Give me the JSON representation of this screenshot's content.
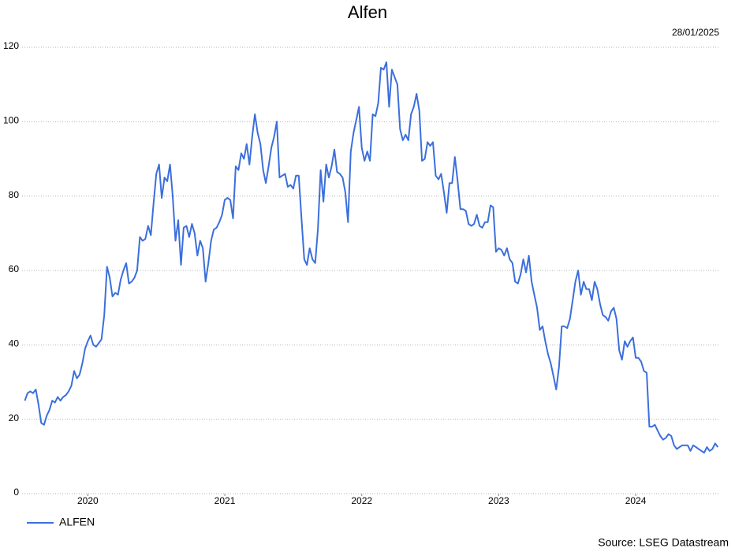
{
  "chart_data": {
    "type": "line",
    "title": "Alfen",
    "subtitle": "28/01/2025",
    "source": "Source: LSEG Datastream",
    "x": [
      2019.54,
      2019.56,
      2019.58,
      2019.6,
      2019.62,
      2019.64,
      2019.66,
      2019.68,
      2019.7,
      2019.72,
      2019.74,
      2019.76,
      2019.78,
      2019.8,
      2019.82,
      2019.84,
      2019.86,
      2019.88,
      2019.9,
      2019.92,
      2019.94,
      2019.96,
      2019.98,
      2020.0,
      2020.02,
      2020.04,
      2020.06,
      2020.08,
      2020.1,
      2020.12,
      2020.14,
      2020.16,
      2020.18,
      2020.2,
      2020.22,
      2020.24,
      2020.26,
      2020.28,
      2020.3,
      2020.32,
      2020.34,
      2020.36,
      2020.38,
      2020.4,
      2020.42,
      2020.44,
      2020.46,
      2020.48,
      2020.5,
      2020.52,
      2020.54,
      2020.56,
      2020.58,
      2020.6,
      2020.62,
      2020.64,
      2020.66,
      2020.68,
      2020.7,
      2020.72,
      2020.74,
      2020.76,
      2020.78,
      2020.8,
      2020.82,
      2020.84,
      2020.86,
      2020.88,
      2020.9,
      2020.92,
      2020.94,
      2020.96,
      2020.98,
      2021.0,
      2021.02,
      2021.04,
      2021.06,
      2021.08,
      2021.1,
      2021.12,
      2021.14,
      2021.16,
      2021.18,
      2021.2,
      2021.22,
      2021.24,
      2021.26,
      2021.28,
      2021.3,
      2021.32,
      2021.34,
      2021.36,
      2021.38,
      2021.4,
      2021.42,
      2021.44,
      2021.46,
      2021.48,
      2021.5,
      2021.52,
      2021.54,
      2021.56,
      2021.58,
      2021.6,
      2021.62,
      2021.64,
      2021.66,
      2021.68,
      2021.7,
      2021.72,
      2021.74,
      2021.76,
      2021.78,
      2021.8,
      2021.82,
      2021.84,
      2021.86,
      2021.88,
      2021.9,
      2021.92,
      2021.94,
      2021.96,
      2021.98,
      2022.0,
      2022.02,
      2022.04,
      2022.06,
      2022.08,
      2022.1,
      2022.12,
      2022.14,
      2022.16,
      2022.18,
      2022.2,
      2022.22,
      2022.24,
      2022.26,
      2022.28,
      2022.3,
      2022.32,
      2022.34,
      2022.36,
      2022.38,
      2022.4,
      2022.42,
      2022.44,
      2022.46,
      2022.48,
      2022.5,
      2022.52,
      2022.54,
      2022.56,
      2022.58,
      2022.6,
      2022.62,
      2022.64,
      2022.66,
      2022.68,
      2022.7,
      2022.72,
      2022.74,
      2022.76,
      2022.78,
      2022.8,
      2022.82,
      2022.84,
      2022.86,
      2022.88,
      2022.9,
      2022.92,
      2022.94,
      2022.96,
      2022.98,
      2023.0,
      2023.02,
      2023.04,
      2023.06,
      2023.08,
      2023.1,
      2023.12,
      2023.14,
      2023.16,
      2023.18,
      2023.2,
      2023.22,
      2023.24,
      2023.26,
      2023.28,
      2023.3,
      2023.32,
      2023.34,
      2023.36,
      2023.38,
      2023.4,
      2023.42,
      2023.44,
      2023.46,
      2023.48,
      2023.5,
      2023.52,
      2023.54,
      2023.56,
      2023.58,
      2023.6,
      2023.62,
      2023.64,
      2023.66,
      2023.68,
      2023.7,
      2023.72,
      2023.74,
      2023.76,
      2023.78,
      2023.8,
      2023.82,
      2023.84,
      2023.86,
      2023.88,
      2023.9,
      2023.92,
      2023.94,
      2023.96,
      2023.98,
      2024.0,
      2024.02,
      2024.04,
      2024.06,
      2024.08,
      2024.1,
      2024.12,
      2024.14,
      2024.16,
      2024.18,
      2024.2,
      2024.22,
      2024.24,
      2024.26,
      2024.28,
      2024.3,
      2024.32,
      2024.34,
      2024.36,
      2024.38,
      2024.4,
      2024.42,
      2024.44,
      2024.46,
      2024.48,
      2024.5,
      2024.52,
      2024.54,
      2024.56,
      2024.58,
      2024.6
    ],
    "series": [
      {
        "name": "ALFEN",
        "color": "#3b6fdc",
        "values": [
          25,
          27,
          27.5,
          27,
          28,
          24,
          19,
          18.5,
          21,
          22.5,
          25,
          24.5,
          26,
          25,
          26,
          26.5,
          27.5,
          29,
          33,
          31,
          32,
          35,
          39,
          41,
          42.5,
          40,
          39.5,
          40.5,
          41.5,
          48,
          61,
          58,
          53,
          54,
          53.5,
          57.5,
          60,
          62,
          56.5,
          57,
          58,
          60,
          69,
          68,
          68.5,
          72,
          69.5,
          78,
          86,
          88.5,
          79.5,
          85,
          84,
          88.5,
          80,
          68,
          73.5,
          61.5,
          71.5,
          72,
          69,
          72.5,
          70,
          64,
          68,
          66,
          57,
          62,
          68,
          71,
          71.5,
          73,
          75,
          79,
          79.5,
          79,
          74,
          88,
          87,
          91.5,
          90,
          94,
          88.5,
          96,
          102,
          97,
          94,
          87,
          83.5,
          88,
          93,
          96,
          100,
          85,
          85.5,
          86,
          82.5,
          83,
          82,
          85.5,
          85.5,
          74,
          63,
          61.5,
          66,
          63,
          62,
          71,
          87,
          78.5,
          88.5,
          85,
          88,
          92.5,
          86.5,
          86,
          85,
          81,
          73,
          92,
          97,
          100.5,
          104,
          93,
          89.5,
          92,
          89.5,
          102,
          101.5,
          105,
          114.5,
          114,
          116,
          104,
          114,
          112,
          110,
          98,
          95,
          96.5,
          95,
          102,
          104,
          107.5,
          103,
          89.5,
          90,
          94.5,
          93.5,
          94.5,
          85.5,
          84.5,
          86,
          81,
          75.5,
          83.5,
          83.5,
          90.5,
          84,
          76.5,
          76.5,
          76,
          72.5,
          72,
          72.5,
          75,
          72,
          71.5,
          73,
          73,
          77.5,
          77,
          65,
          66,
          65.5,
          64,
          66,
          63,
          62,
          57,
          56.5,
          59,
          63,
          59.5,
          64,
          57,
          53.5,
          50,
          44,
          45,
          41,
          37.5,
          35,
          31.5,
          28,
          34,
          45,
          45,
          44.5,
          47,
          52,
          57,
          60,
          53.5,
          57,
          55,
          55,
          52,
          57,
          55,
          51,
          48,
          47.5,
          46.5,
          49,
          50,
          47,
          38.5,
          36,
          41,
          39.5,
          41,
          42,
          36.5,
          36.5,
          35.5,
          33,
          32.5,
          18,
          18,
          18.5,
          17,
          15.5,
          14.5,
          15,
          16,
          15.5,
          13,
          12,
          12.5,
          13,
          13,
          13,
          11.5,
          13,
          12.5,
          12,
          11.5,
          11,
          12.5,
          11.5,
          12,
          13.5,
          12.5
        ]
      }
    ],
    "xlim": [
      2019.52,
      2024.61
    ],
    "xticks": [
      2020,
      2021,
      2022,
      2023,
      2024
    ],
    "ylim": [
      0,
      120
    ],
    "yticks": [
      0,
      20,
      40,
      60,
      80,
      100,
      120
    ],
    "grid": true,
    "legend": "bottom-left"
  }
}
